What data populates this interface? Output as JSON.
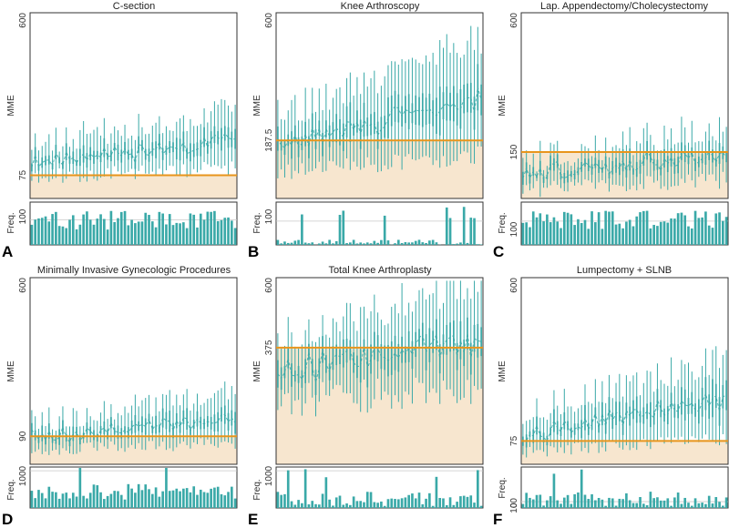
{
  "figure": {
    "colors": {
      "threshold": "#E8951C",
      "shade": "#F7E6CF",
      "bar": "#3AA9A8",
      "grid": "#C8C8C8",
      "frame": "#333333"
    },
    "y_label": "MME",
    "freq_label": "Freq."
  },
  "chart_data": [
    {
      "panel": "A",
      "title": "C-section",
      "type": "bar",
      "ylim": [
        0,
        600
      ],
      "yticks": [
        75,
        600
      ],
      "threshold": 75,
      "freq_ticks": [
        100
      ],
      "freq_max": 170,
      "series": [
        {
          "seed": 11,
          "n": 60,
          "base_low": 70,
          "base_high": 255,
          "low_noise": 50,
          "high_noise": 90,
          "min_low": 20
        }
      ]
    },
    {
      "panel": "B",
      "title": "Knee Arthroscopy",
      "type": "bar",
      "ylim": [
        0,
        600
      ],
      "yticks": [
        187.5,
        600
      ],
      "threshold": 187.5,
      "freq_ticks": [
        100
      ],
      "freq_max": 180,
      "series": [
        {
          "seed": 29,
          "n": 60,
          "base_low": 80,
          "base_high": 490,
          "low_noise": 60,
          "high_noise": 110,
          "min_low": 20
        }
      ]
    },
    {
      "panel": "C",
      "title": "Lap. Appendectomy/Cholecystectomy",
      "type": "bar",
      "ylim": [
        0,
        600
      ],
      "yticks": [
        150,
        600
      ],
      "threshold": 150,
      "freq_ticks": [
        100
      ],
      "freq_max": 180,
      "series": [
        {
          "seed": 47,
          "n": 60,
          "base_low": 30,
          "base_high": 220,
          "low_noise": 60,
          "high_noise": 100,
          "min_low": 5
        }
      ]
    },
    {
      "panel": "D",
      "title": "Minimally Invasive Gynecologic Procedures",
      "type": "bar",
      "ylim": [
        0,
        600
      ],
      "yticks": [
        90,
        600
      ],
      "threshold": 90,
      "freq_ticks": [
        1000
      ],
      "freq_max": 1100,
      "series": [
        {
          "seed": 63,
          "n": 60,
          "base_low": 45,
          "base_high": 210,
          "low_noise": 40,
          "high_noise": 80,
          "min_low": 10
        }
      ]
    },
    {
      "panel": "E",
      "title": "Total Knee Arthroplasty",
      "type": "bar",
      "ylim": [
        0,
        600
      ],
      "yticks": [
        375,
        600
      ],
      "threshold": 375,
      "freq_ticks": [
        1000
      ],
      "freq_max": 1100,
      "series": [
        {
          "seed": 81,
          "n": 60,
          "base_low": 200,
          "base_high": 520,
          "low_noise": 110,
          "high_noise": 120,
          "min_low": 10
        }
      ]
    },
    {
      "panel": "F",
      "title": "Lumpectomy + SLNB",
      "type": "bar",
      "ylim": [
        0,
        600
      ],
      "yticks": [
        75,
        600
      ],
      "threshold": 75,
      "freq_ticks": [
        0,
        100
      ],
      "freq_max": 650,
      "series": [
        {
          "seed": 97,
          "n": 60,
          "base_low": 40,
          "base_high": 320,
          "low_noise": 40,
          "high_noise": 100,
          "min_low": 10
        }
      ]
    }
  ]
}
